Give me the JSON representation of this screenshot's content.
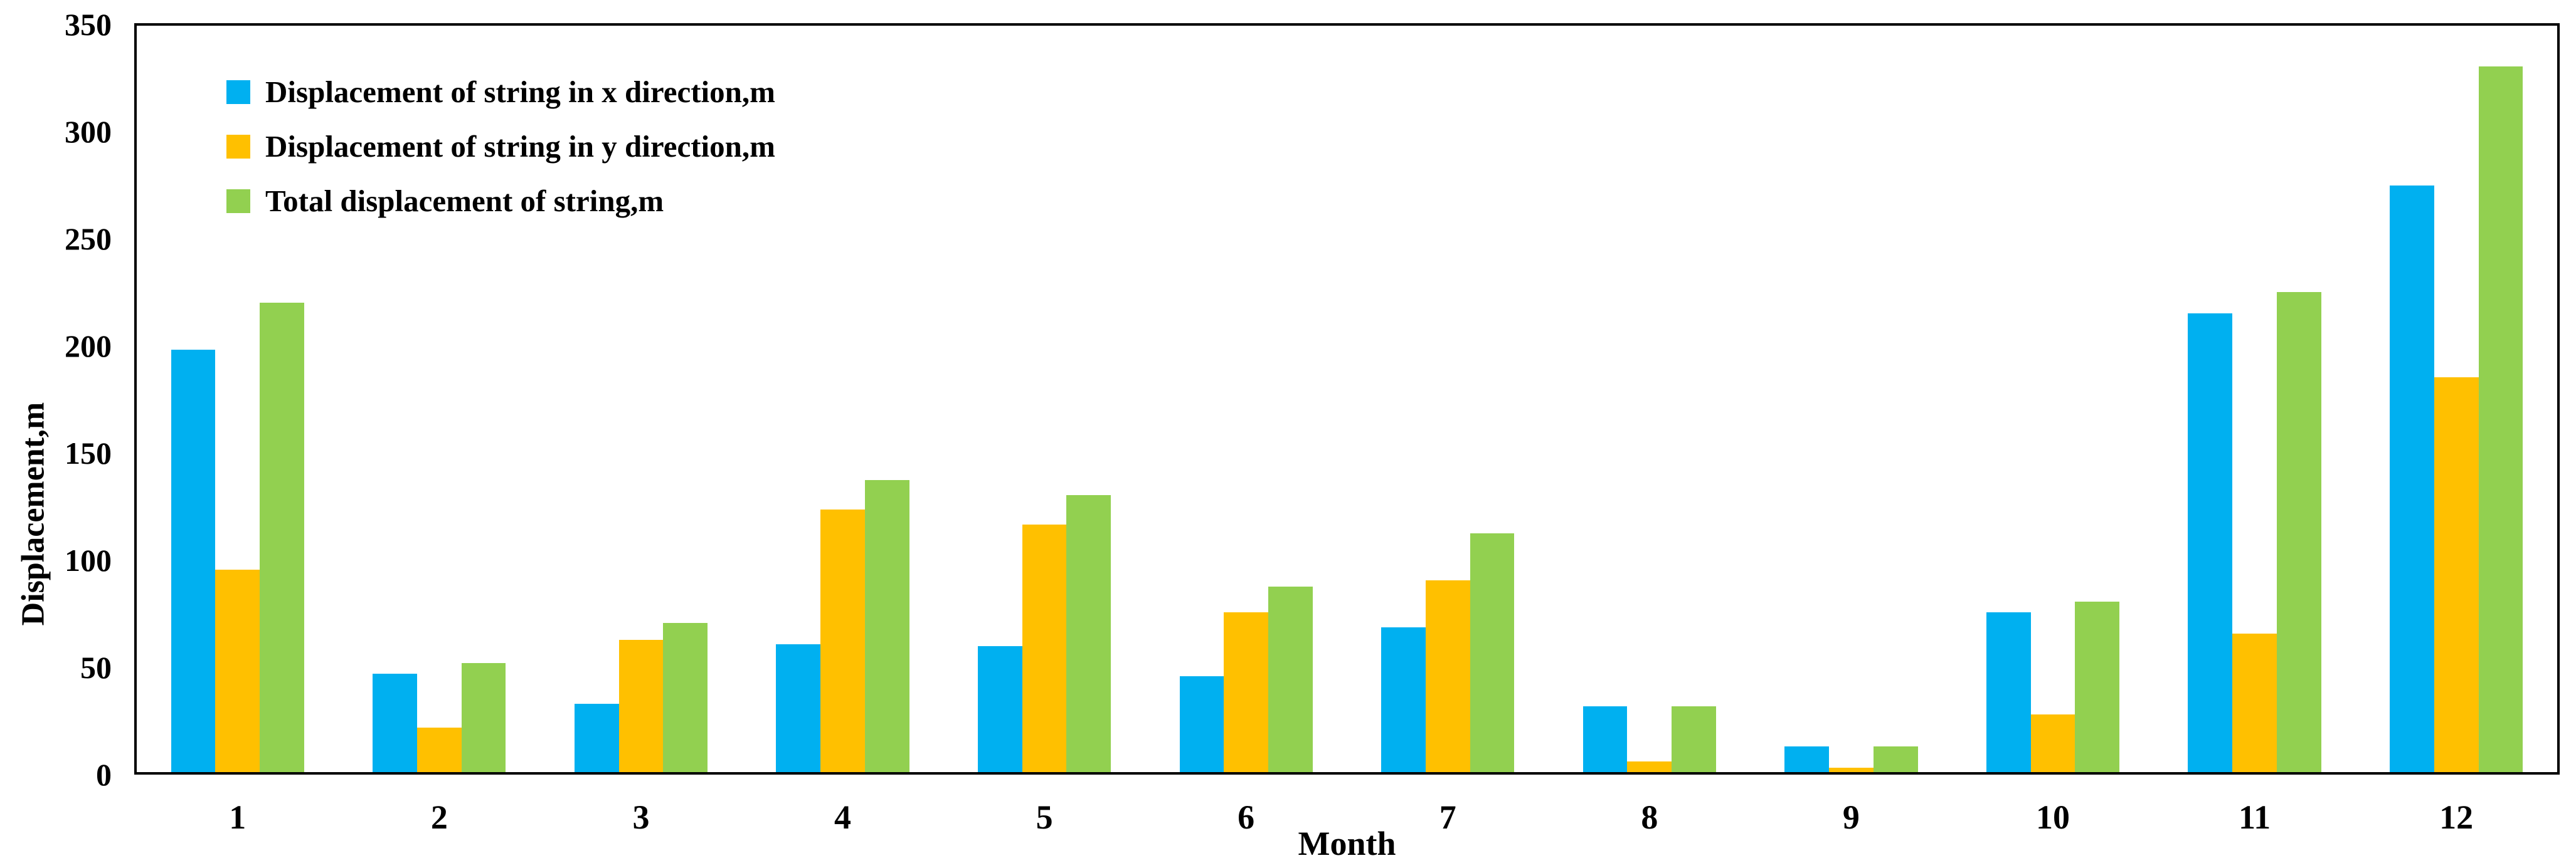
{
  "chart_data": {
    "type": "bar",
    "title": "",
    "categories": [
      "1",
      "2",
      "3",
      "4",
      "5",
      "6",
      "7",
      "8",
      "9",
      "10",
      "11",
      "12"
    ],
    "series": [
      {
        "name": "Displacement of string in x direction,m",
        "color": "#00B0F0",
        "values": [
          198,
          46,
          32,
          60,
          59,
          45,
          68,
          31,
          12,
          75,
          215,
          275
        ]
      },
      {
        "name": "Displacement of string in y direction,m",
        "color": "#FFC000",
        "values": [
          95,
          21,
          62,
          123,
          116,
          75,
          90,
          5,
          2,
          27,
          65,
          185
        ]
      },
      {
        "name": "Total displacement of string,m",
        "color": "#92D050",
        "values": [
          220,
          51,
          70,
          137,
          130,
          87,
          112,
          31,
          12,
          80,
          225,
          331
        ]
      }
    ],
    "xlabel": "Month",
    "ylabel": "Displacement,m",
    "ylim": [
      0,
      350
    ],
    "yticks": [
      0,
      50,
      100,
      150,
      200,
      250,
      300,
      350
    ],
    "grid": false,
    "legend_position": "top-left",
    "axis_color": "#000000",
    "plot_border": true
  }
}
